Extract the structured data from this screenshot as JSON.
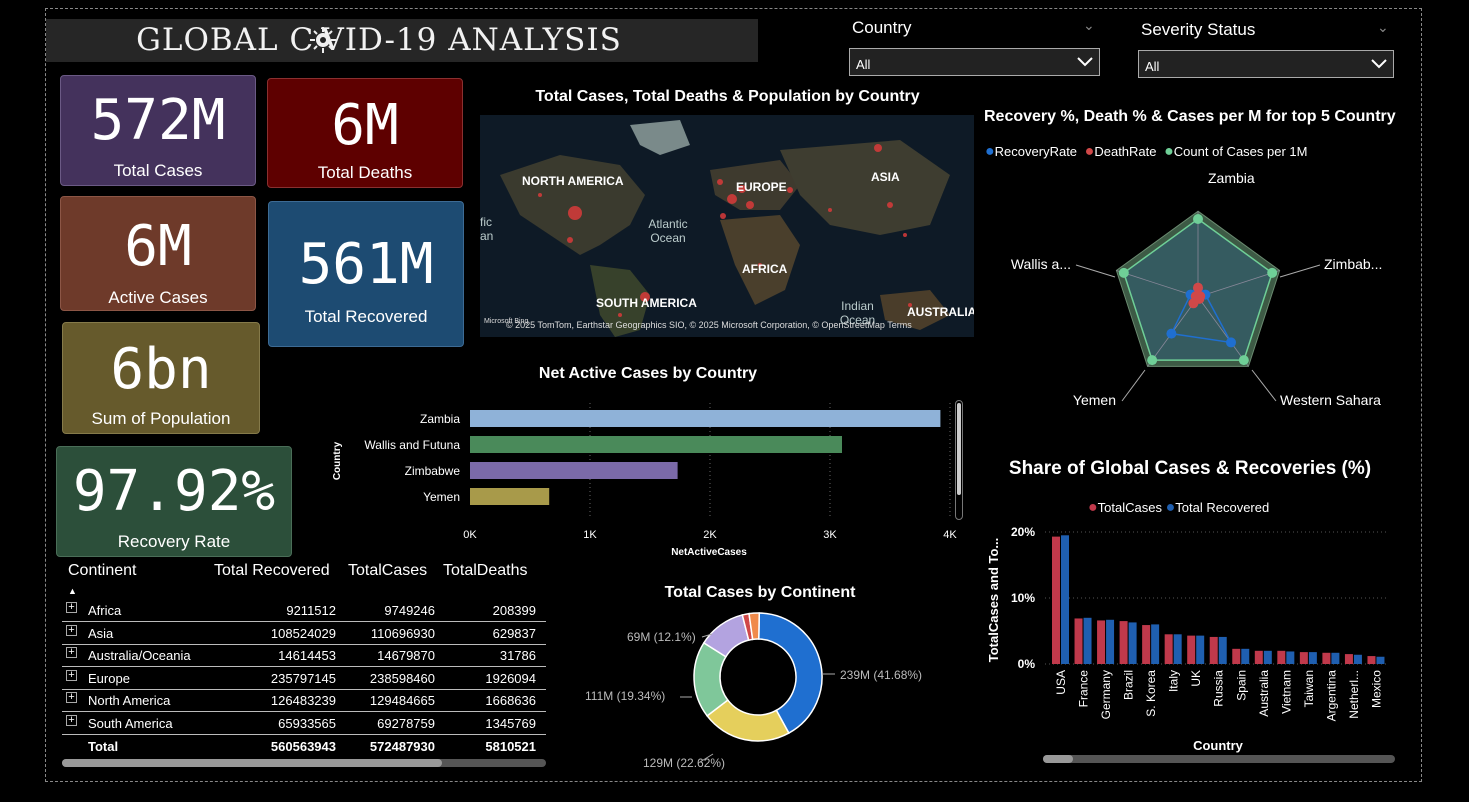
{
  "header": {
    "title": "GLOBAL C VID-19 ANALYSIS"
  },
  "filters": {
    "country": {
      "label": "Country",
      "value": "All"
    },
    "severity": {
      "label": "Severity Status",
      "value": "All"
    }
  },
  "kpis": {
    "total_cases": {
      "value": "572M",
      "label": "Total Cases",
      "color": "#44325c"
    },
    "total_deaths": {
      "value": "6M",
      "label": "Total Deaths",
      "color": "#5e0000"
    },
    "active_cases": {
      "value": "6M",
      "label": "Active Cases",
      "color": "#6e3a2a"
    },
    "total_recovered": {
      "value": "561M",
      "label": "Total Recovered",
      "color": "#1d4b72"
    },
    "population": {
      "value": "6bn",
      "label": "Sum of Population",
      "color": "#665a2c"
    },
    "recovery_rate": {
      "value": "97.92%",
      "label": "Recovery Rate",
      "color": "#2c4f3a"
    }
  },
  "map": {
    "title": "Total Cases, Total Deaths & Population by Country",
    "labels": [
      "NORTH AMERICA",
      "EUROPE",
      "ASIA",
      "Atlantic Ocean",
      "AFRICA",
      "SOUTH AMERICA",
      "Indian Ocean",
      "AUSTRALIA",
      "fic",
      "an"
    ],
    "attribution": "© 2025 TomTom, Earthstar Geographics SIO, © 2025 Microsoft Corporation, © OpenStreetMap  Terms",
    "logo": "Microsoft Bing"
  },
  "radar": {
    "title": "Recovery %, Death % & Cases per M for top 5 Country",
    "legend": [
      {
        "name": "RecoveryRate",
        "color": "#1f6fd0"
      },
      {
        "name": "DeathRate",
        "color": "#d04848"
      },
      {
        "name": "Count of Cases per 1M",
        "color": "#6fcf97"
      }
    ],
    "axes": [
      "Zambia",
      "Zimbab...",
      "Western Sahara",
      "Yemen",
      "Wallis a..."
    ]
  },
  "bar_chart": {
    "title": "Net Active Cases by Country",
    "ylabel": "Country",
    "xlabel": "NetActiveCases",
    "ticks": [
      "0K",
      "1K",
      "2K",
      "3K",
      "4K"
    ]
  },
  "donut": {
    "title": "Total Cases by Continent",
    "labels": [
      "239M (41.68%)",
      "129M (22.62%)",
      "111M (19.34%)",
      "69M (12.1%)"
    ]
  },
  "column_chart": {
    "title": "Share of Global Cases & Recoveries (%)",
    "legend": [
      {
        "name": "TotalCases",
        "color": "#c0394b"
      },
      {
        "name": "Total Recovered",
        "color": "#1f5fb0"
      }
    ],
    "ylabel": "TotalCases and To...",
    "xlabel": "Country",
    "yticks": [
      "20%",
      "10%",
      "0%"
    ]
  },
  "table": {
    "headers": [
      "Continent",
      "Total Recovered",
      "TotalCases",
      "TotalDeaths"
    ],
    "rows": [
      {
        "continent": "Africa",
        "recovered": "9211512",
        "cases": "9749246",
        "deaths": "208399"
      },
      {
        "continent": "Asia",
        "recovered": "108524029",
        "cases": "110696930",
        "deaths": "629837"
      },
      {
        "continent": "Australia/Oceania",
        "recovered": "14614453",
        "cases": "14679870",
        "deaths": "31786"
      },
      {
        "continent": "Europe",
        "recovered": "235797145",
        "cases": "238598460",
        "deaths": "1926094"
      },
      {
        "continent": "North America",
        "recovered": "126483239",
        "cases": "129484665",
        "deaths": "1668636"
      },
      {
        "continent": "South America",
        "recovered": "65933565",
        "cases": "69278759",
        "deaths": "1345769"
      }
    ],
    "total": {
      "label": "Total",
      "recovered": "560563943",
      "cases": "572487930",
      "deaths": "5810521"
    }
  },
  "chart_data": [
    {
      "type": "bar",
      "title": "Net Active Cases by Country",
      "xlabel": "NetActiveCases",
      "ylabel": "Country",
      "categories": [
        "Zambia",
        "Wallis and Futuna",
        "Zimbabwe",
        "Yemen"
      ],
      "values": [
        3920,
        3100,
        1730,
        660
      ],
      "colors": [
        "#8fb2d8",
        "#4a8a5a",
        "#7b6aa8",
        "#a89a4a"
      ],
      "xlim": [
        0,
        4000
      ]
    },
    {
      "type": "pie",
      "title": "Total Cases by Continent",
      "categories": [
        "Europe",
        "North America",
        "Asia",
        "South America",
        "Africa",
        "Australia/Oceania"
      ],
      "values": [
        41.68,
        22.62,
        19.34,
        12.1,
        1.7,
        2.56
      ],
      "colors": [
        "#1f6fd0",
        "#e5cf5c",
        "#7fc79a",
        "#b3a3e0",
        "#d04848",
        "#f08a4a"
      ]
    },
    {
      "type": "bar",
      "title": "Share of Global Cases & Recoveries (%)",
      "xlabel": "Country",
      "ylabel": "TotalCases and To...",
      "categories": [
        "USA",
        "France",
        "Germany",
        "Brazil",
        "S. Korea",
        "Italy",
        "UK",
        "Russia",
        "Spain",
        "Australia",
        "Vietnam",
        "Taiwan",
        "Argentina",
        "Netherl...",
        "Mexico"
      ],
      "series": [
        {
          "name": "TotalCases",
          "values": [
            19.3,
            6.9,
            6.6,
            6.5,
            5.9,
            4.5,
            4.3,
            4.1,
            2.3,
            2.0,
            2.0,
            1.8,
            1.7,
            1.5,
            1.2
          ]
        },
        {
          "name": "Total Recovered",
          "values": [
            19.5,
            7.0,
            6.7,
            6.3,
            6.0,
            4.5,
            4.3,
            4.1,
            2.3,
            2.0,
            1.9,
            1.8,
            1.7,
            1.4,
            1.1
          ]
        }
      ],
      "ylim": [
        0,
        20
      ]
    },
    {
      "type": "radar",
      "title": "Recovery %, Death % & Cases per M for top 5 Country",
      "categories": [
        "Zambia",
        "Zimbab...",
        "Western Sahara",
        "Yemen",
        "Wallis a..."
      ],
      "series": [
        {
          "name": "RecoveryRate",
          "values": [
            0.1,
            0.1,
            0.72,
            0.58,
            0.1
          ]
        },
        {
          "name": "DeathRate",
          "values": [
            0.12,
            0.03,
            0.03,
            0.1,
            0.03
          ]
        },
        {
          "name": "Count of Cases per 1M",
          "values": [
            1.0,
            1.0,
            1.0,
            1.0,
            1.0
          ]
        }
      ]
    }
  ]
}
